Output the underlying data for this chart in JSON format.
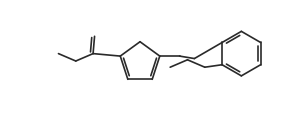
{
  "bg_color": "#ffffff",
  "line_color": "#2a2a2a",
  "line_width": 1.2,
  "figsize": [
    2.85,
    1.25
  ],
  "dpi": 100,
  "xlim": [
    0,
    57
  ],
  "ylim": [
    0,
    25
  ]
}
